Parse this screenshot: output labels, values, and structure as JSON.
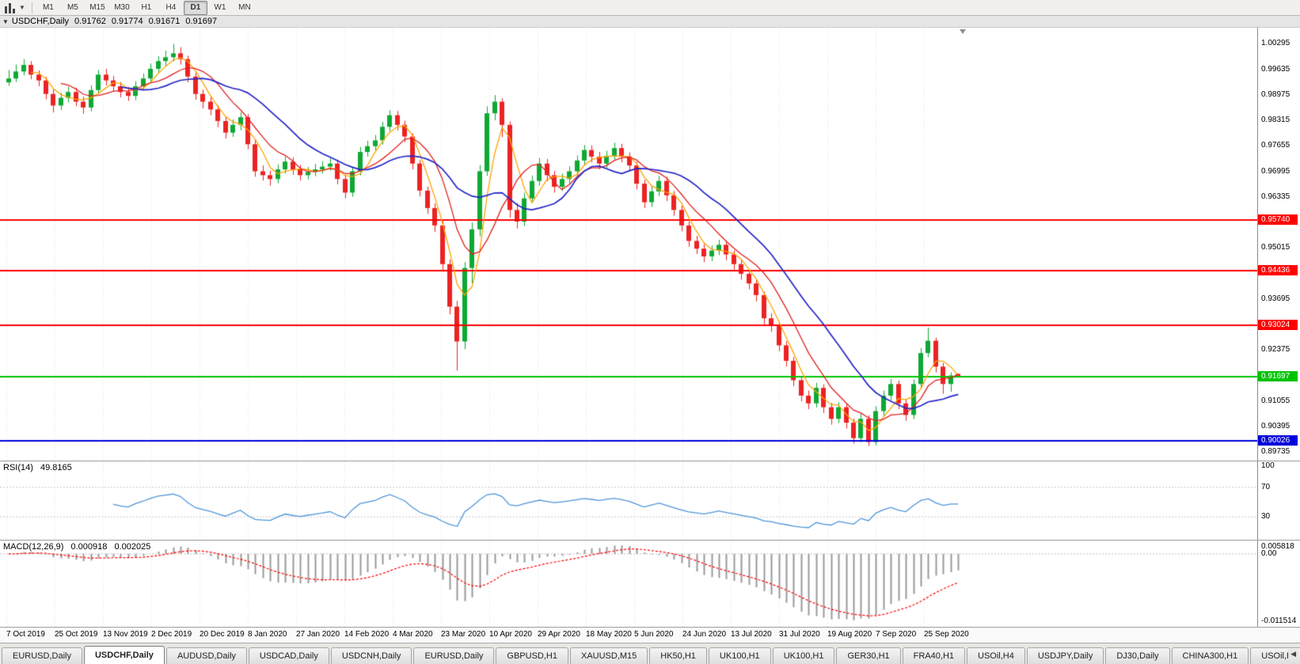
{
  "colors": {
    "up": "#0FA834",
    "down": "#EC2222",
    "ma_fast": "#FFA400",
    "ma_mid": "#E02020",
    "ma_slow": "#2525C8",
    "hline_red": "#FF0000",
    "hline_green": "#00C300",
    "hline_blue": "#0000DC",
    "rsi_line": "#4D96D9",
    "macd_hist": "#9A9A9A",
    "macd_signal": "#FF0000"
  },
  "toolbar": {
    "timeframes": [
      "M1",
      "M5",
      "M15",
      "M30",
      "H1",
      "H4",
      "D1",
      "W1",
      "MN"
    ],
    "active_timeframe": "D1"
  },
  "chart_header": {
    "symbol_period": "USDCHF,Daily",
    "open": "0.91762",
    "high": "0.91774",
    "low": "0.91671",
    "close": "0.91697"
  },
  "panels": {
    "rsi": {
      "title": "RSI(14)",
      "value": "49.8165",
      "axis_100": "100",
      "axis_70": "70",
      "axis_30": "30"
    },
    "macd": {
      "title": "MACD(12,26,9)",
      "value_main": "0.000918",
      "value_signal": "0.002025",
      "axis_top": "0.005818",
      "axis_zero": "0.00",
      "axis_bottom": "-0.011514"
    }
  },
  "price_axis": {
    "labels": [
      {
        "text": "1.00295",
        "price": 1.00295
      },
      {
        "text": "0.99635",
        "price": 0.99635
      },
      {
        "text": "0.98975",
        "price": 0.98975
      },
      {
        "text": "0.98315",
        "price": 0.98315
      },
      {
        "text": "0.97655",
        "price": 0.97655
      },
      {
        "text": "0.96995",
        "price": 0.96995
      },
      {
        "text": "0.96335",
        "price": 0.96335
      },
      {
        "text": "0.95015",
        "price": 0.95015
      },
      {
        "text": "0.93695",
        "price": 0.93695
      },
      {
        "text": "0.92375",
        "price": 0.92375
      },
      {
        "text": "0.91055",
        "price": 0.91055
      },
      {
        "text": "0.90395",
        "price": 0.90395
      },
      {
        "text": "0.89735",
        "price": 0.89735
      }
    ]
  },
  "hlines": [
    {
      "price": 0.9574,
      "label": "0.95740",
      "color_key": "hline_red"
    },
    {
      "price": 0.94436,
      "label": "0.94436",
      "color_key": "hline_red"
    },
    {
      "price": 0.93024,
      "label": "0.93024",
      "color_key": "hline_red"
    },
    {
      "price": 0.91697,
      "label": "0.91697",
      "color_key": "hline_green"
    },
    {
      "price": 0.90026,
      "label": "0.90026",
      "color_key": "hline_blue"
    }
  ],
  "date_axis": [
    "7 Oct 2019",
    "25 Oct 2019",
    "13 Nov 2019",
    "2 Dec 2019",
    "20 Dec 2019",
    "8 Jan 2020",
    "27 Jan 2020",
    "14 Feb 2020",
    "4 Mar 2020",
    "23 Mar 2020",
    "10 Apr 2020",
    "29 Apr 2020",
    "18 May 2020",
    "5 Jun 2020",
    "24 Jun 2020",
    "13 Jul 2020",
    "31 Jul 2020",
    "19 Aug 2020",
    "7 Sep 2020",
    "25 Sep 2020"
  ],
  "tabs": {
    "items": [
      "EURUSD,Daily",
      "USDCHF,Daily",
      "AUDUSD,Daily",
      "USDCAD,Daily",
      "USDCNH,Daily",
      "EURUSD,Daily",
      "GBPUSD,H1",
      "XAUUSD,M15",
      "HK50,H1",
      "UK100,H1",
      "UK100,H1",
      "GER30,H1",
      "FRA40,H1",
      "USOil,H4",
      "USDJPY,Daily",
      "DJ30,Daily",
      "CHINA300,H1",
      "USOil,H"
    ],
    "active_index": 1
  },
  "chart_data": {
    "type": "candlestick",
    "symbol": "USDCHF",
    "period": "Daily",
    "last_ohlc": {
      "open": 0.91762,
      "high": 0.91774,
      "low": 0.91671,
      "close": 0.91697
    },
    "y_range": [
      0.8952,
      1.0102
    ],
    "ma": {
      "fast_period": 4,
      "mid_period": 8,
      "slow_period": 16
    },
    "rsi_period": 14,
    "macd_params": [
      12,
      26,
      9
    ],
    "support_resistance": [
      0.9574,
      0.94436,
      0.93024,
      0.91697,
      0.90026
    ],
    "candles": [
      [
        0.993,
        0.9962,
        0.9921,
        0.994
      ],
      [
        0.994,
        0.9976,
        0.9931,
        0.9958
      ],
      [
        0.9958,
        0.999,
        0.9948,
        0.9975
      ],
      [
        0.9975,
        0.9985,
        0.9938,
        0.995
      ],
      [
        0.995,
        0.9961,
        0.992,
        0.9935
      ],
      [
        0.9935,
        0.9944,
        0.9886,
        0.99
      ],
      [
        0.99,
        0.9912,
        0.9852,
        0.987
      ],
      [
        0.987,
        0.9903,
        0.9858,
        0.989
      ],
      [
        0.989,
        0.9919,
        0.9878,
        0.9905
      ],
      [
        0.9905,
        0.9916,
        0.9868,
        0.988
      ],
      [
        0.988,
        0.9893,
        0.9849,
        0.9865
      ],
      [
        0.9865,
        0.9922,
        0.9855,
        0.991
      ],
      [
        0.991,
        0.9962,
        0.9899,
        0.995
      ],
      [
        0.995,
        0.9965,
        0.9922,
        0.9935
      ],
      [
        0.9935,
        0.9947,
        0.9907,
        0.992
      ],
      [
        0.992,
        0.9931,
        0.9891,
        0.9905
      ],
      [
        0.9905,
        0.9918,
        0.9882,
        0.9895
      ],
      [
        0.9895,
        0.9933,
        0.9884,
        0.992
      ],
      [
        0.992,
        0.9953,
        0.9909,
        0.994
      ],
      [
        0.994,
        0.9978,
        0.993,
        0.9965
      ],
      [
        0.9965,
        0.9998,
        0.9954,
        0.9985
      ],
      [
        0.9985,
        1.0012,
        0.9973,
        0.9995
      ],
      [
        0.9995,
        1.0029,
        0.9984,
        1.0005
      ],
      [
        1.0005,
        1.0021,
        0.9976,
        0.999
      ],
      [
        0.999,
        0.9999,
        0.993,
        0.9945
      ],
      [
        0.9945,
        0.9955,
        0.9885,
        0.99
      ],
      [
        0.99,
        0.9911,
        0.9863,
        0.988
      ],
      [
        0.988,
        0.9893,
        0.9845,
        0.986
      ],
      [
        0.986,
        0.9871,
        0.9814,
        0.983
      ],
      [
        0.983,
        0.9842,
        0.9785,
        0.98
      ],
      [
        0.98,
        0.9834,
        0.9789,
        0.982
      ],
      [
        0.982,
        0.9852,
        0.9806,
        0.984
      ],
      [
        0.984,
        0.9848,
        0.9757,
        0.977
      ],
      [
        0.977,
        0.9781,
        0.9686,
        0.97
      ],
      [
        0.97,
        0.9715,
        0.9676,
        0.969
      ],
      [
        0.969,
        0.9702,
        0.9663,
        0.968
      ],
      [
        0.968,
        0.9718,
        0.9669,
        0.9705
      ],
      [
        0.9705,
        0.9738,
        0.9694,
        0.9725
      ],
      [
        0.9725,
        0.9736,
        0.9691,
        0.9705
      ],
      [
        0.9705,
        0.9717,
        0.9676,
        0.969
      ],
      [
        0.969,
        0.9711,
        0.9679,
        0.9698
      ],
      [
        0.9698,
        0.9719,
        0.9687,
        0.9705
      ],
      [
        0.9705,
        0.9726,
        0.9694,
        0.9712
      ],
      [
        0.9712,
        0.9734,
        0.9701,
        0.972
      ],
      [
        0.972,
        0.973,
        0.9666,
        0.968
      ],
      [
        0.968,
        0.9691,
        0.963,
        0.9645
      ],
      [
        0.9645,
        0.9712,
        0.9634,
        0.97
      ],
      [
        0.97,
        0.9763,
        0.9689,
        0.975
      ],
      [
        0.975,
        0.9779,
        0.9738,
        0.9765
      ],
      [
        0.9765,
        0.9794,
        0.9753,
        0.978
      ],
      [
        0.978,
        0.9828,
        0.9769,
        0.9815
      ],
      [
        0.9815,
        0.9858,
        0.9804,
        0.9845
      ],
      [
        0.9845,
        0.9856,
        0.9806,
        0.982
      ],
      [
        0.982,
        0.9831,
        0.9775,
        0.979
      ],
      [
        0.979,
        0.9798,
        0.9705,
        0.972
      ],
      [
        0.972,
        0.9729,
        0.9635,
        0.965
      ],
      [
        0.965,
        0.9661,
        0.959,
        0.9605
      ],
      [
        0.9605,
        0.9617,
        0.9543,
        0.956
      ],
      [
        0.956,
        0.9571,
        0.9442,
        0.946
      ],
      [
        0.946,
        0.9472,
        0.933,
        0.935
      ],
      [
        0.935,
        0.9365,
        0.9185,
        0.926
      ],
      [
        0.926,
        0.9465,
        0.924,
        0.945
      ],
      [
        0.945,
        0.9568,
        0.941,
        0.955
      ],
      [
        0.955,
        0.9716,
        0.9532,
        0.97
      ],
      [
        0.97,
        0.9868,
        0.9688,
        0.985
      ],
      [
        0.985,
        0.9897,
        0.9832,
        0.988
      ],
      [
        0.988,
        0.9889,
        0.9788,
        0.982
      ],
      [
        0.982,
        0.9829,
        0.958,
        0.96
      ],
      [
        0.96,
        0.9618,
        0.9552,
        0.957
      ],
      [
        0.957,
        0.9645,
        0.9558,
        0.963
      ],
      [
        0.963,
        0.9689,
        0.9618,
        0.9675
      ],
      [
        0.9675,
        0.9734,
        0.9663,
        0.972
      ],
      [
        0.972,
        0.9732,
        0.9674,
        0.969
      ],
      [
        0.969,
        0.9701,
        0.9645,
        0.966
      ],
      [
        0.966,
        0.9694,
        0.9649,
        0.968
      ],
      [
        0.968,
        0.9713,
        0.9668,
        0.97
      ],
      [
        0.97,
        0.9741,
        0.9689,
        0.9728
      ],
      [
        0.9728,
        0.9768,
        0.9716,
        0.9755
      ],
      [
        0.9755,
        0.9767,
        0.9723,
        0.9738
      ],
      [
        0.9738,
        0.975,
        0.9705,
        0.972
      ],
      [
        0.972,
        0.9753,
        0.9708,
        0.974
      ],
      [
        0.974,
        0.9774,
        0.9729,
        0.976
      ],
      [
        0.976,
        0.9771,
        0.9723,
        0.9738
      ],
      [
        0.9738,
        0.9749,
        0.97,
        0.9715
      ],
      [
        0.9715,
        0.9724,
        0.9653,
        0.9668
      ],
      [
        0.9668,
        0.9678,
        0.9605,
        0.962
      ],
      [
        0.962,
        0.9661,
        0.9608,
        0.9648
      ],
      [
        0.9648,
        0.9688,
        0.9636,
        0.9675
      ],
      [
        0.9675,
        0.9686,
        0.9623,
        0.9638
      ],
      [
        0.9638,
        0.9649,
        0.9585,
        0.96
      ],
      [
        0.96,
        0.9611,
        0.9545,
        0.956
      ],
      [
        0.956,
        0.9571,
        0.9505,
        0.952
      ],
      [
        0.952,
        0.9533,
        0.9486,
        0.95
      ],
      [
        0.95,
        0.9512,
        0.9465,
        0.948
      ],
      [
        0.948,
        0.9508,
        0.9468,
        0.9495
      ],
      [
        0.9495,
        0.9523,
        0.9483,
        0.951
      ],
      [
        0.951,
        0.9521,
        0.947,
        0.9485
      ],
      [
        0.9485,
        0.9496,
        0.9445,
        0.946
      ],
      [
        0.946,
        0.9471,
        0.942,
        0.9435
      ],
      [
        0.9435,
        0.9446,
        0.9395,
        0.941
      ],
      [
        0.941,
        0.9421,
        0.9364,
        0.938
      ],
      [
        0.938,
        0.9389,
        0.9304,
        0.932
      ],
      [
        0.932,
        0.9333,
        0.9285,
        0.93
      ],
      [
        0.93,
        0.931,
        0.9235,
        0.925
      ],
      [
        0.925,
        0.9261,
        0.9195,
        0.921
      ],
      [
        0.921,
        0.922,
        0.9144,
        0.916
      ],
      [
        0.916,
        0.9171,
        0.9105,
        0.912
      ],
      [
        0.912,
        0.9133,
        0.9085,
        0.91
      ],
      [
        0.91,
        0.9153,
        0.9089,
        0.914
      ],
      [
        0.914,
        0.9149,
        0.9075,
        0.909
      ],
      [
        0.909,
        0.9101,
        0.9045,
        0.906
      ],
      [
        0.906,
        0.9103,
        0.9049,
        0.909
      ],
      [
        0.909,
        0.9099,
        0.9035,
        0.905
      ],
      [
        0.905,
        0.9061,
        0.8996,
        0.901
      ],
      [
        0.901,
        0.9073,
        0.8999,
        0.906
      ],
      [
        0.906,
        0.9069,
        0.899,
        0.9
      ],
      [
        0.9,
        0.9092,
        0.8992,
        0.908
      ],
      [
        0.908,
        0.9133,
        0.9069,
        0.912
      ],
      [
        0.912,
        0.9163,
        0.9109,
        0.915
      ],
      [
        0.915,
        0.9159,
        0.9085,
        0.91
      ],
      [
        0.91,
        0.9111,
        0.9055,
        0.907
      ],
      [
        0.907,
        0.9162,
        0.9059,
        0.915
      ],
      [
        0.915,
        0.9243,
        0.9139,
        0.923
      ],
      [
        0.923,
        0.9296,
        0.9219,
        0.9262
      ],
      [
        0.9262,
        0.927,
        0.918,
        0.9195
      ],
      [
        0.9195,
        0.9205,
        0.9125,
        0.915
      ],
      [
        0.915,
        0.918,
        0.913,
        0.9172
      ],
      [
        0.91762,
        0.91774,
        0.91671,
        0.91697
      ]
    ]
  }
}
